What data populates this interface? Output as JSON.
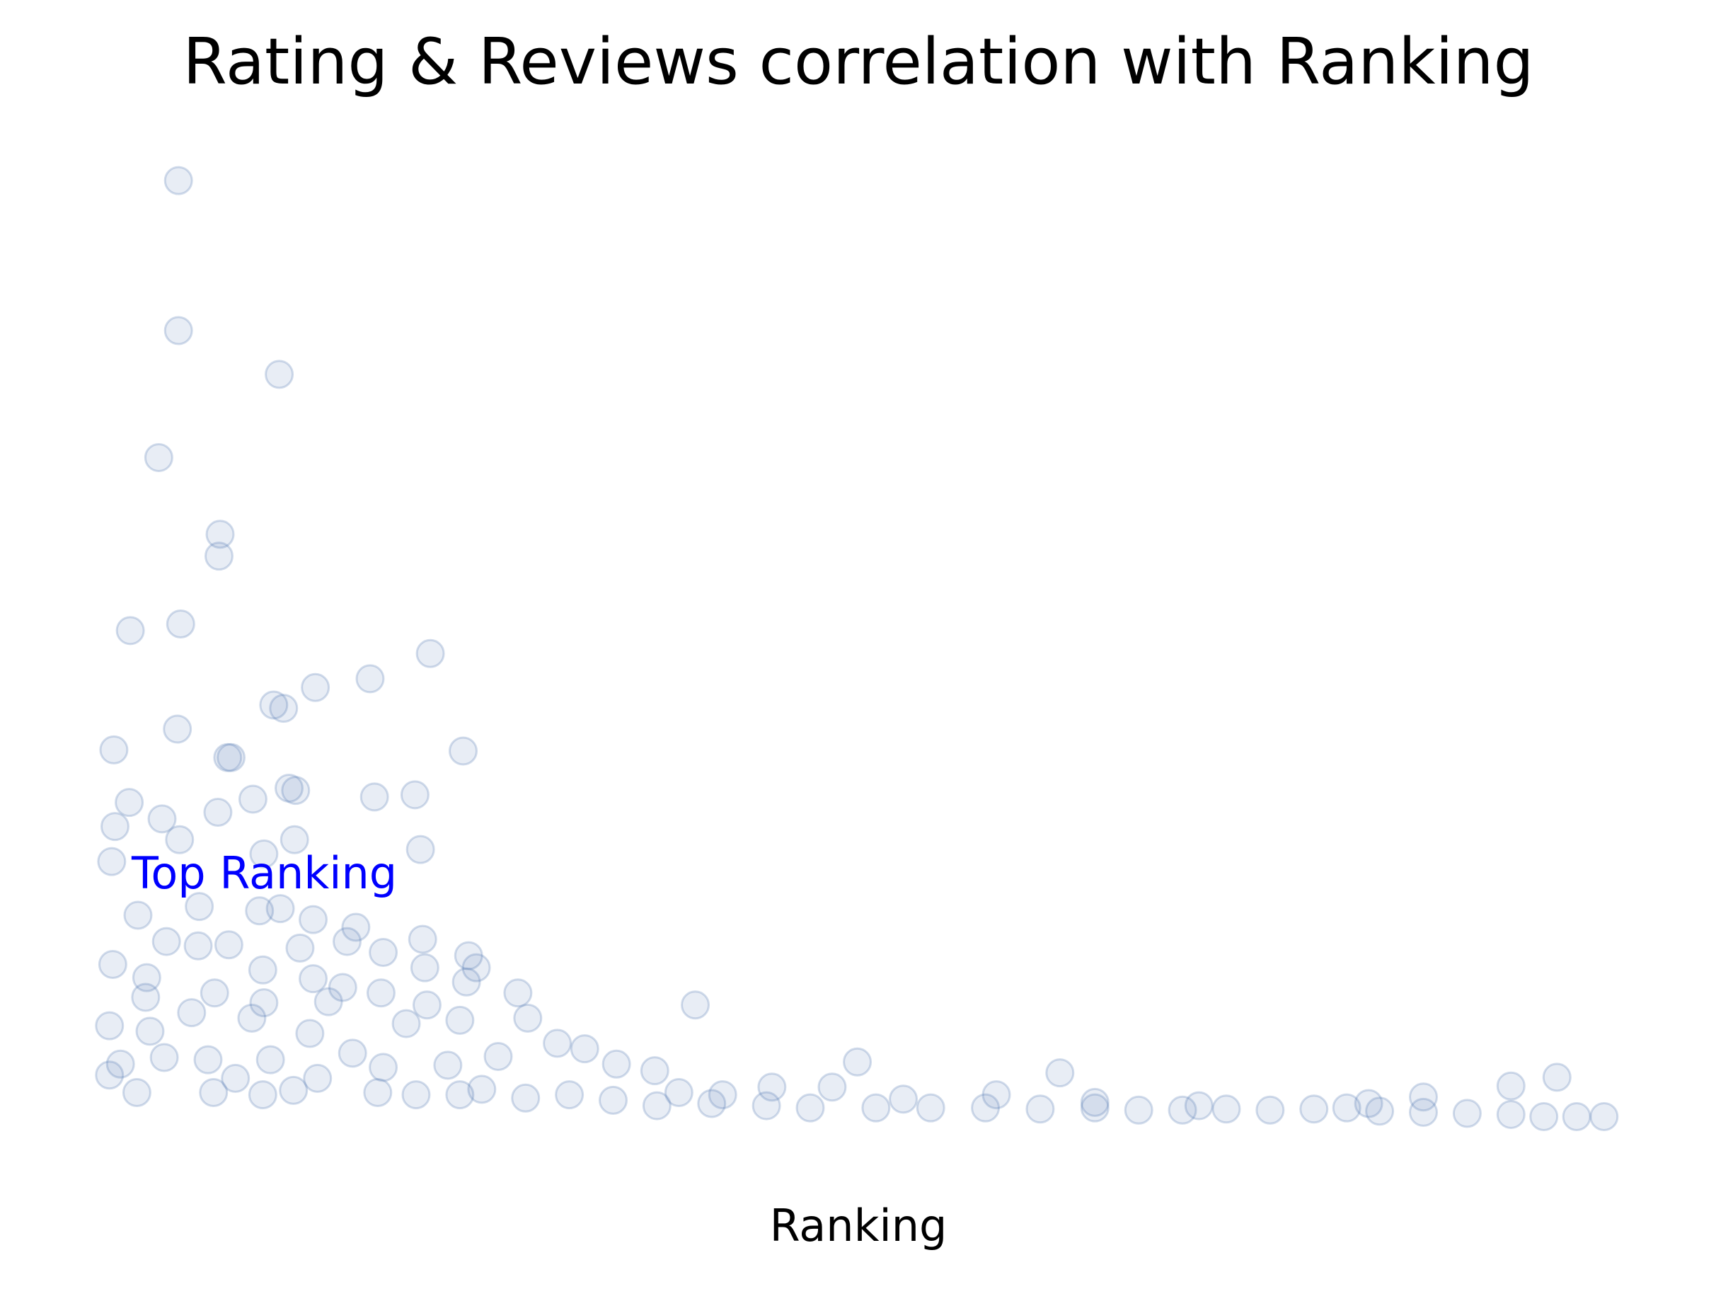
{
  "chart_data": {
    "type": "scatter",
    "title": "Rating & Reviews correlation with Ranking",
    "xlabel": "Ranking",
    "annotation": "Top Ranking",
    "color": "#4c72b0",
    "xlim": [
      0,
      1385
    ],
    "ylim": [
      0,
      900
    ],
    "x": [
      68,
      68,
      160,
      50,
      106,
      105,
      24,
      70,
      298,
      243,
      193,
      155,
      164,
      67,
      9,
      328,
      116,
      113,
      169,
      175,
      247,
      284,
      23,
      136,
      104,
      53,
      10,
      69,
      174,
      289,
      146,
      7,
      161,
      142,
      87,
      31,
      191,
      230,
      291,
      57,
      86,
      114,
      222,
      179,
      333,
      255,
      8,
      340,
      293,
      145,
      39,
      191,
      331,
      218,
      253,
      378,
      38,
      101,
      540,
      146,
      205,
      295,
      80,
      135,
      387,
      276,
      5,
      325,
      42,
      188,
      414,
      439,
      227,
      55,
      95,
      152,
      360,
      688,
      468,
      15,
      255,
      314,
      873,
      503,
      1327,
      5,
      120,
      195,
      1285,
      30,
      100,
      173,
      250,
      345,
      425,
      610,
      525,
      665,
      815,
      1205,
      385,
      465,
      555,
      605,
      645,
      705,
      755,
      805,
      855,
      905,
      945,
      985,
      1025,
      1065,
      1105,
      1135,
      1165,
      1205,
      1245,
      1285,
      1315,
      1345,
      1370,
      505,
      325,
      285,
      145,
      1155,
      1000,
      905,
      730,
      565
    ],
    "y": [
      865,
      728,
      688,
      612,
      542,
      522,
      454,
      460,
      433,
      410,
      402,
      386,
      383,
      364,
      345,
      344,
      338,
      338,
      310,
      308,
      302,
      304,
      297,
      300,
      288,
      282,
      275,
      263,
      263,
      254,
      250,
      243,
      200,
      198,
      202,
      194,
      190,
      183,
      172,
      170,
      166,
      167,
      170,
      164,
      157,
      160,
      149,
      146,
      146,
      144,
      137,
      136,
      133,
      128,
      123,
      123,
      119,
      123,
      112,
      114,
      115,
      112,
      105,
      100,
      100,
      95,
      93,
      98,
      88,
      86,
      77,
      72,
      68,
      64,
      62,
      62,
      65,
      60,
      58,
      58,
      55,
      57,
      50,
      52,
      46,
      48,
      45,
      45,
      38,
      32,
      32,
      34,
      32,
      35,
      30,
      37,
      32,
      37,
      30,
      28,
      27,
      25,
      22,
      20,
      18,
      18,
      18,
      18,
      17,
      18,
      16,
      16,
      17,
      16,
      17,
      18,
      15,
      14,
      13,
      12,
      10,
      10,
      10,
      20,
      30,
      30,
      30,
      22,
      20,
      23,
      26,
      30
    ]
  }
}
